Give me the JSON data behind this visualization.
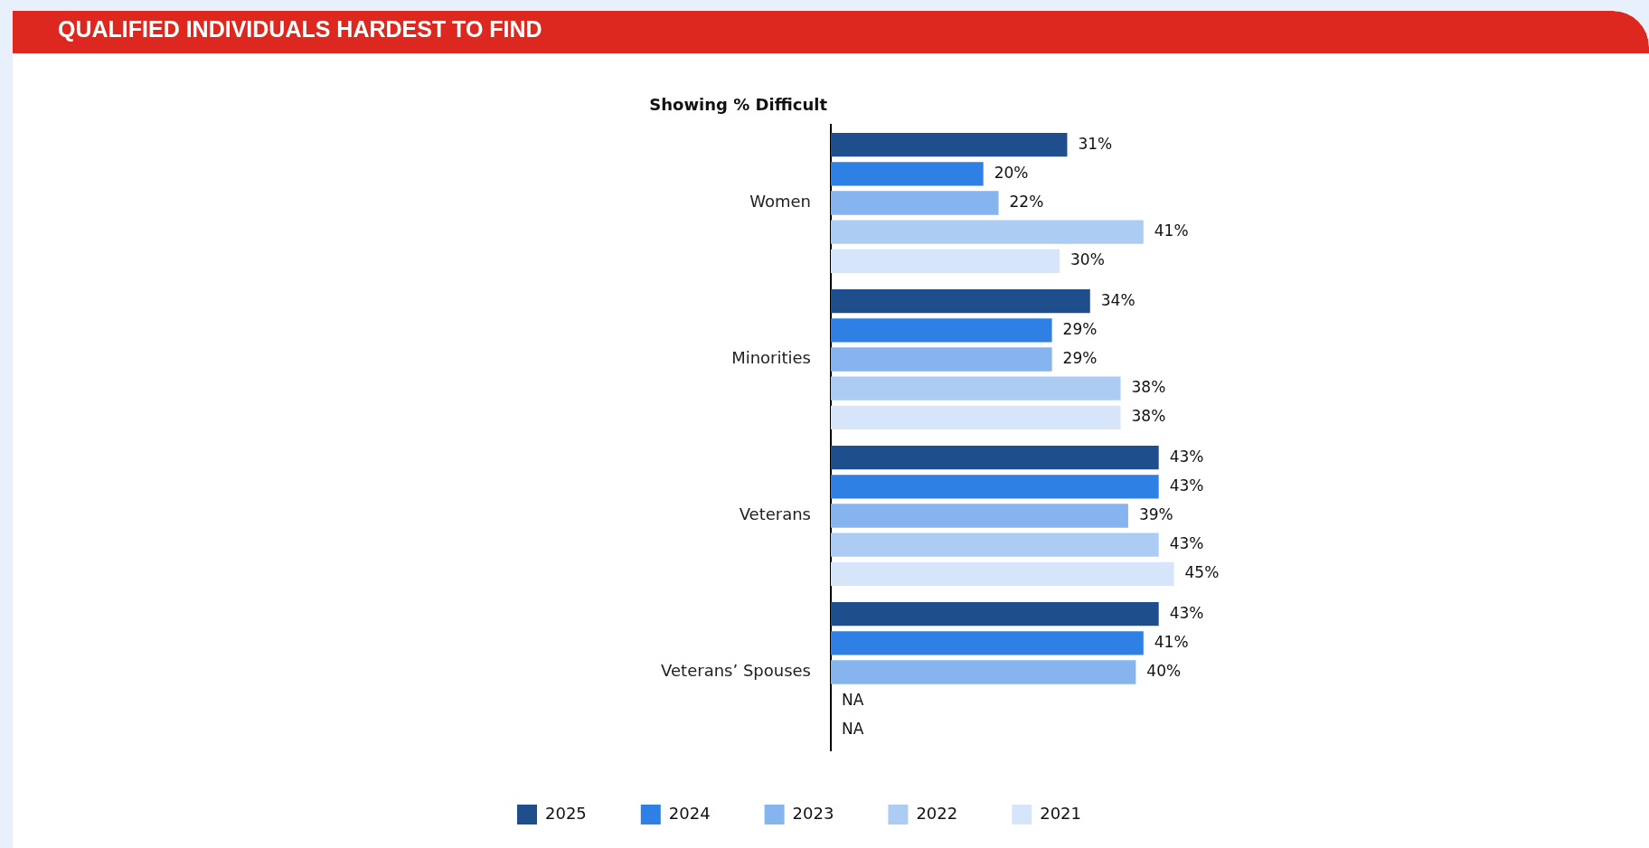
{
  "chart_data": {
    "type": "bar",
    "orientation": "horizontal",
    "title": "QUALIFIED INDIVIDUALS HARDEST TO FIND",
    "subtitle": "Showing % Difficult",
    "categories": [
      "Women",
      "Minorities",
      "Veterans",
      "Veterans’ Spouses"
    ],
    "series": [
      {
        "name": "2025",
        "color": "#1f4e8c",
        "values": [
          31,
          34,
          43,
          43
        ],
        "value_labels": [
          "31%",
          "34%",
          "43%",
          "43%"
        ]
      },
      {
        "name": "2024",
        "color": "#2f80e4",
        "values": [
          20,
          29,
          43,
          41
        ],
        "value_labels": [
          "20%",
          "29%",
          "43%",
          "41%"
        ]
      },
      {
        "name": "2023",
        "color": "#86b4ef",
        "values": [
          22,
          29,
          39,
          40
        ],
        "value_labels": [
          "22%",
          "29%",
          "39%",
          "40%"
        ]
      },
      {
        "name": "2022",
        "color": "#adccf4",
        "values": [
          41,
          38,
          43,
          null
        ],
        "value_labels": [
          "41%",
          "38%",
          "43%",
          "NA"
        ]
      },
      {
        "name": "2021",
        "color": "#d6e5f9",
        "values": [
          30,
          38,
          45,
          null
        ],
        "value_labels": [
          "30%",
          "38%",
          "45%",
          "NA"
        ]
      }
    ],
    "legend": "bottom",
    "grid": false
  }
}
